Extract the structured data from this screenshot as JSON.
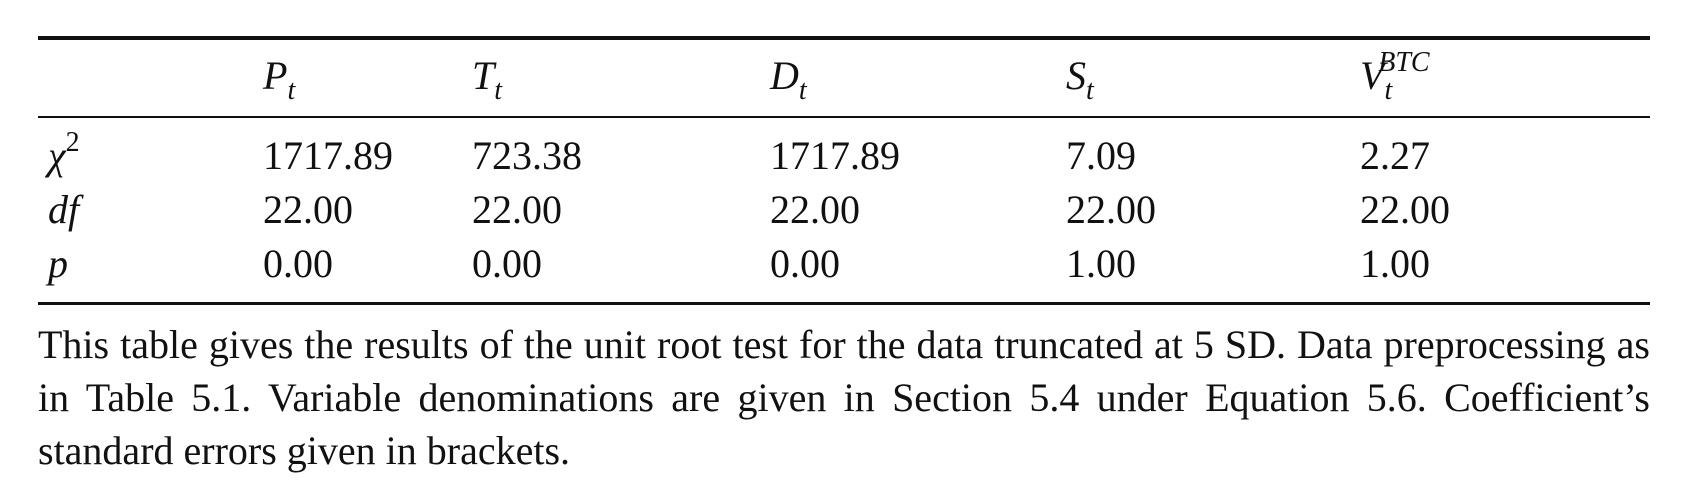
{
  "table": {
    "columns": [
      {
        "base": "P",
        "sub": "t",
        "sup": ""
      },
      {
        "base": "T",
        "sub": "t",
        "sup": ""
      },
      {
        "base": "D",
        "sub": "t",
        "sup": ""
      },
      {
        "base": "S",
        "sub": "t",
        "sup": ""
      },
      {
        "base": "V",
        "sub": "t",
        "sup": "BTC"
      }
    ],
    "rows": [
      {
        "label": "χ",
        "label_sup": "2",
        "values": [
          "1717.89",
          "723.38",
          "1717.89",
          "7.09",
          "2.27"
        ]
      },
      {
        "label": "df",
        "label_sup": "",
        "values": [
          "22.00",
          "22.00",
          "22.00",
          "22.00",
          "22.00"
        ]
      },
      {
        "label": "p",
        "label_sup": "",
        "values": [
          "0.00",
          "0.00",
          "0.00",
          "1.00",
          "1.00"
        ]
      }
    ]
  },
  "caption": "This table gives the results of the unit root test for the data truncated at 5 SD. Data preprocessing as in Table 5.1. Variable denominations are given in Section 5.4 under Equation 5.6. Coefficient’s standard errors given in brackets."
}
